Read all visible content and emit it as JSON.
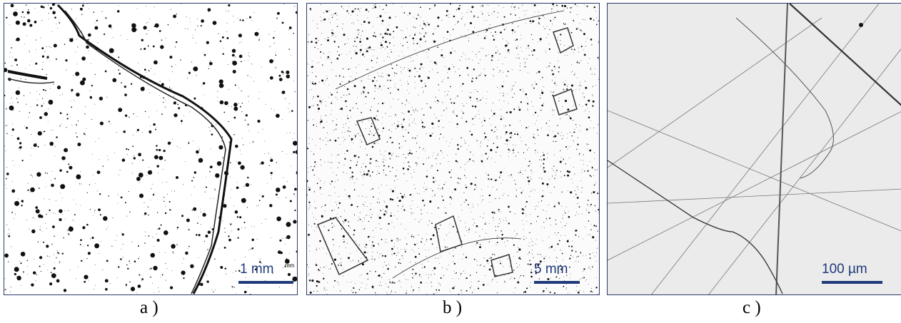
{
  "panels": [
    {
      "id": "a",
      "scale_label": "1 mm",
      "caption": "a )"
    },
    {
      "id": "b",
      "scale_label": "5 mm",
      "caption": "b )"
    },
    {
      "id": "c",
      "scale_label": "100 µm",
      "caption": "c )"
    }
  ],
  "stamp_a": "mm",
  "colors": {
    "frame": "#2b3b6b",
    "scalebar": "#1f3a7a",
    "panel_c_bg": "#ebebeb"
  }
}
